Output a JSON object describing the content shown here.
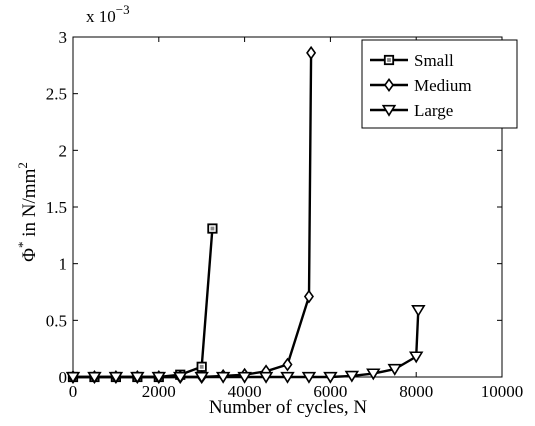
{
  "chart_data": {
    "type": "line",
    "xlabel": "Number of cycles, N",
    "ylabel_main": "Φ",
    "ylabel_sup": "*",
    "ylabel_mid": " in N/mm",
    "ylabel_exp": "2",
    "y_multiplier_base": "x 10",
    "y_multiplier_exp": "−3",
    "xlim": [
      0,
      10000
    ],
    "ylim": [
      0,
      3
    ],
    "x_ticks": [
      0,
      2000,
      4000,
      6000,
      8000,
      10000
    ],
    "x_tick_labels": [
      "0",
      "2000",
      "4000",
      "6000",
      "8000",
      "10000"
    ],
    "y_ticks": [
      0,
      0.5,
      1,
      1.5,
      2,
      2.5,
      3
    ],
    "y_tick_labels": [
      "0",
      "0.5",
      "1",
      "1.5",
      "2",
      "2.5",
      "3"
    ],
    "grid": false,
    "legend_position": "top-right",
    "series": [
      {
        "name": "Small",
        "marker": "square",
        "x": [
          0,
          500,
          1000,
          1500,
          2000,
          2500,
          3000,
          3250
        ],
        "y": [
          0,
          0,
          0,
          0,
          0,
          0.02,
          0.09,
          1.31
        ]
      },
      {
        "name": "Medium",
        "marker": "diamond",
        "x": [
          0,
          500,
          1000,
          1500,
          2000,
          2500,
          3000,
          3500,
          4000,
          4500,
          5000,
          5500,
          5550
        ],
        "y": [
          0,
          0,
          0,
          0,
          0,
          0,
          0,
          0.01,
          0.02,
          0.05,
          0.11,
          0.71,
          2.86
        ]
      },
      {
        "name": "Large",
        "marker": "triangle-down",
        "x": [
          0,
          500,
          1000,
          1500,
          2000,
          2500,
          3000,
          3500,
          4000,
          4500,
          5000,
          5500,
          6000,
          6500,
          7000,
          7500,
          8000,
          8050
        ],
        "y": [
          0,
          0,
          0,
          0,
          0,
          0,
          0,
          0,
          0,
          0,
          0,
          0,
          0,
          0.01,
          0.03,
          0.07,
          0.18,
          0.59
        ]
      }
    ]
  }
}
